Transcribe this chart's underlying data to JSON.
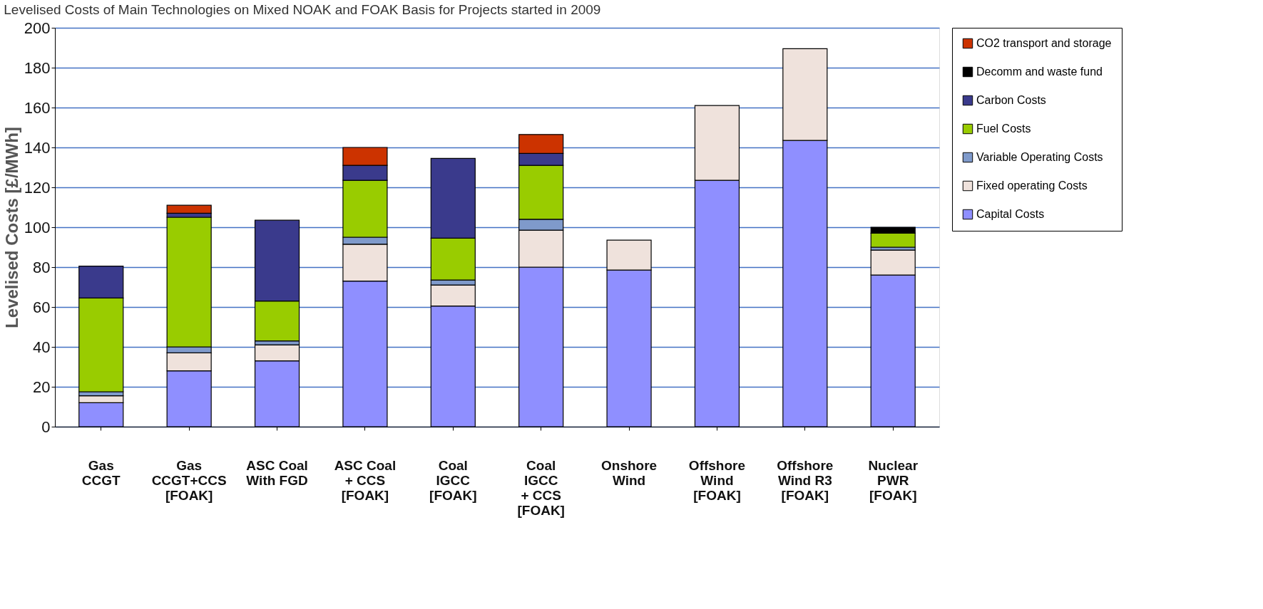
{
  "chart_data": {
    "type": "bar",
    "stacked": true,
    "title": "Levelised Costs of Main Technologies on Mixed NOAK and FOAK Basis for Projects started in 2009",
    "ylabel": "Levelised Costs [£/MWh]",
    "categories": [
      "Gas\nCCGT",
      "Gas\nCCGT+CCS\n[FOAK]",
      "ASC Coal\nWith FGD",
      "ASC Coal\n+ CCS\n[FOAK]",
      "Coal\nIGCC\n[FOAK]",
      "Coal\nIGCC\n+ CCS\n[FOAK]",
      "Onshore\nWind",
      "Offshore\nWind\n[FOAK]",
      "Offshore\nWind R3\n[FOAK]",
      "Nuclear\nPWR\n[FOAK]"
    ],
    "series": [
      {
        "name": "Capital Costs",
        "color": "#8f8fff",
        "values": [
          12,
          28,
          33,
          73,
          60.5,
          80,
          78.5,
          123.5,
          143.5,
          76
        ]
      },
      {
        "name": "Fixed operating Costs",
        "color": "#efe2dc",
        "values": [
          3.5,
          9,
          8,
          18.5,
          10.5,
          18.5,
          15,
          37.5,
          46,
          12.5
        ]
      },
      {
        "name": "Variable Operating Costs",
        "color": "#7f9acb",
        "values": [
          2,
          3,
          2,
          3.5,
          2.5,
          5.5,
          null,
          null,
          null,
          1.5
        ]
      },
      {
        "name": "Fuel Costs",
        "color": "#99cc00",
        "values": [
          47,
          65,
          20,
          28.5,
          21,
          27,
          null,
          null,
          null,
          7
        ]
      },
      {
        "name": "Carbon Costs",
        "color": "#3a3a8c",
        "values": [
          16,
          2,
          40.5,
          7.5,
          40,
          6,
          null,
          null,
          null,
          null
        ]
      },
      {
        "name": "Decomm and waste fund",
        "color": "#000000",
        "values": [
          null,
          null,
          null,
          null,
          null,
          null,
          null,
          null,
          null,
          3
        ]
      },
      {
        "name": "CO2 transport and storage",
        "color": "#cc3300",
        "values": [
          null,
          4,
          null,
          9,
          null,
          9.5,
          null,
          null,
          null,
          null
        ]
      }
    ],
    "ylim": [
      0,
      200
    ],
    "yticks": [
      0,
      20,
      40,
      60,
      80,
      100,
      120,
      140,
      160,
      180,
      200
    ],
    "grid": "y",
    "legend": "right"
  }
}
